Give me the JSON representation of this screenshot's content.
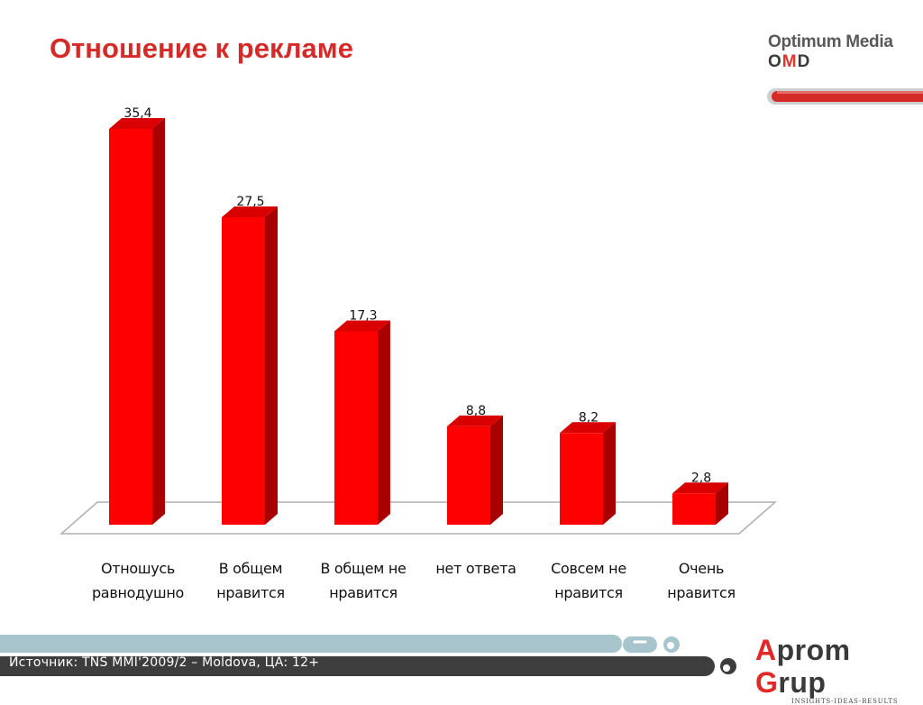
{
  "title": "Отношение к рекламе",
  "brand": {
    "agency_line1": "Optimum Media",
    "agency_line2_red": "O",
    "agency_line2_red2": "M",
    "agency_line2_rest": "D",
    "agency_line2_full": "OMD",
    "partner_red1": "A",
    "partner_mid1": "prom ",
    "partner_red2": "G",
    "partner_mid2": "rup",
    "partner_tagline": "INSIGHTS-IDEAS-RESULTS"
  },
  "footer": {
    "source": "Источник: TNS MMI'2009/2 – Moldova, ЦА: 12+"
  },
  "colors": {
    "title": "#d42a28",
    "bar_front": "#ff0000",
    "bar_side": "#a80000",
    "bar_top": "#d80000",
    "footer_dark": "#3d3d3d",
    "footer_light": "#a8c4cc"
  },
  "chart_data": {
    "type": "bar",
    "categories": [
      [
        "Отношусь",
        "равнодушно"
      ],
      [
        "В общем",
        "нравится"
      ],
      [
        "В общем не",
        "нравится"
      ],
      [
        "нет ответа"
      ],
      [
        "Совсем не",
        "нравится"
      ],
      [
        "Очень",
        "нравится"
      ]
    ],
    "values": [
      35.4,
      27.5,
      17.3,
      8.8,
      8.2,
      2.8
    ],
    "value_labels": [
      "35,4",
      "27,5",
      "17,3",
      "8,8",
      "8,2",
      "2,8"
    ],
    "title": "",
    "xlabel": "",
    "ylabel": "",
    "ylim": [
      0,
      35.4
    ],
    "grid": false,
    "legend": "none",
    "style": "3d-bars"
  }
}
